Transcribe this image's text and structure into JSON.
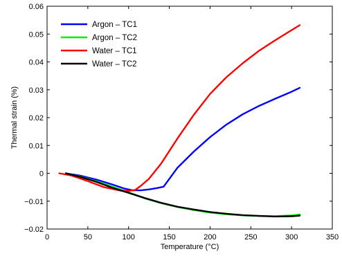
{
  "chart_data": {
    "type": "line",
    "title": "",
    "xlabel": "Temperature (°C)",
    "ylabel": "Thermal strain (%)",
    "xlim": [
      0,
      350
    ],
    "ylim": [
      -0.02,
      0.06
    ],
    "xticks": [
      0,
      50,
      100,
      150,
      200,
      250,
      300,
      350
    ],
    "yticks": [
      -0.02,
      -0.01,
      0,
      0.01,
      0.02,
      0.03,
      0.04,
      0.05,
      0.06
    ],
    "xtick_labels": [
      "0",
      "50",
      "100",
      "150",
      "200",
      "250",
      "300",
      "350"
    ],
    "ytick_labels": [
      "−0.02",
      "−0.01",
      "0",
      "0.01",
      "0.02",
      "0.03",
      "0.04",
      "0.05",
      "0.06"
    ],
    "grid": false,
    "legend_position": "top-left",
    "series": [
      {
        "name": "Argon – TC1",
        "color": "#0000ff",
        "x": [
          23,
          40,
          60,
          80,
          95,
          105,
          115,
          125,
          135,
          143,
          160,
          180,
          200,
          220,
          240,
          260,
          280,
          300,
          310
        ],
        "y": [
          0,
          -0.0008,
          -0.0022,
          -0.004,
          -0.0055,
          -0.0061,
          -0.0061,
          -0.0058,
          -0.0053,
          -0.0048,
          0.002,
          0.0078,
          0.013,
          0.0175,
          0.0212,
          0.0242,
          0.0268,
          0.0293,
          0.0307
        ]
      },
      {
        "name": "Argon – TC2",
        "color": "#00ee00",
        "x": [
          23,
          40,
          60,
          80,
          100,
          120,
          140,
          160,
          180,
          200,
          220,
          240,
          260,
          280,
          300,
          310
        ],
        "y": [
          0,
          -0.0011,
          -0.0028,
          -0.0048,
          -0.0068,
          -0.009,
          -0.0107,
          -0.0121,
          -0.0132,
          -0.0141,
          -0.0147,
          -0.0151,
          -0.0153,
          -0.0154,
          -0.0151,
          -0.0148
        ]
      },
      {
        "name": "Water – TC1",
        "color": "#ff0000",
        "x": [
          15,
          30,
          50,
          70,
          90,
          100,
          108,
          115,
          125,
          140,
          160,
          180,
          200,
          220,
          240,
          260,
          280,
          300,
          310
        ],
        "y": [
          0,
          -0.0008,
          -0.0028,
          -0.005,
          -0.0062,
          -0.0063,
          -0.006,
          -0.0045,
          -0.002,
          0.0035,
          0.0125,
          0.021,
          0.0285,
          0.0345,
          0.0395,
          0.044,
          0.0478,
          0.0514,
          0.0532
        ]
      },
      {
        "name": "Water – TC2",
        "color": "#000000",
        "x": [
          23,
          40,
          60,
          80,
          100,
          120,
          140,
          160,
          180,
          200,
          220,
          240,
          260,
          280,
          300,
          310
        ],
        "y": [
          0,
          -0.0012,
          -0.003,
          -0.0052,
          -0.007,
          -0.0089,
          -0.0106,
          -0.012,
          -0.013,
          -0.0139,
          -0.0145,
          -0.015,
          -0.0153,
          -0.0155,
          -0.0154,
          -0.0152
        ]
      }
    ]
  }
}
